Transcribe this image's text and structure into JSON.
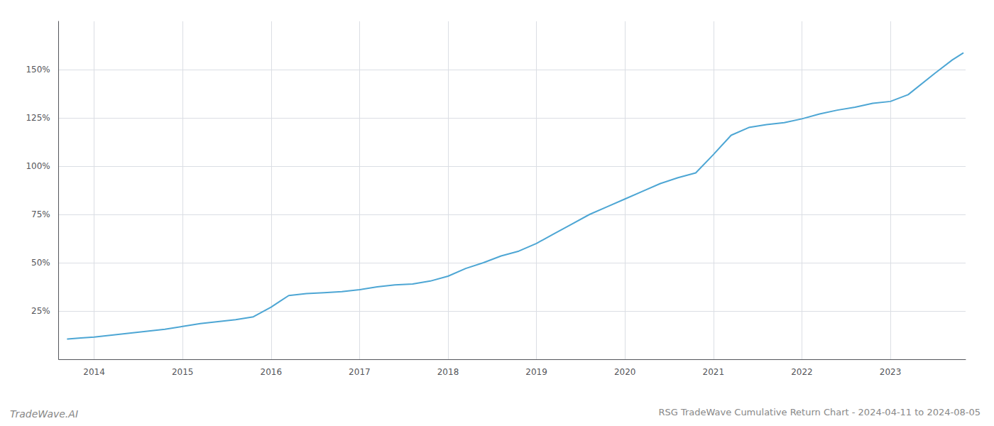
{
  "chart_data": {
    "type": "line",
    "title": "RSG TradeWave Cumulative Return Chart - 2024-04-11 to 2024-08-05",
    "annotations": [
      "TradeWave.AI"
    ],
    "color": "#4da6d4",
    "x": [
      2013.7,
      2013.85,
      2014.0,
      2014.2,
      2014.4,
      2014.6,
      2014.8,
      2015.0,
      2015.2,
      2015.4,
      2015.6,
      2015.8,
      2016.0,
      2016.1,
      2016.2,
      2016.4,
      2016.6,
      2016.8,
      2017.0,
      2017.2,
      2017.4,
      2017.6,
      2017.8,
      2018.0,
      2018.2,
      2018.4,
      2018.6,
      2018.8,
      2019.0,
      2019.2,
      2019.4,
      2019.6,
      2019.8,
      2020.0,
      2020.2,
      2020.4,
      2020.6,
      2020.8,
      2021.0,
      2021.2,
      2021.4,
      2021.6,
      2021.8,
      2022.0,
      2022.2,
      2022.4,
      2022.6,
      2022.8,
      2023.0,
      2023.2,
      2023.5,
      2023.7,
      2023.82
    ],
    "values": [
      10.5,
      11.0,
      11.5,
      12.5,
      13.5,
      14.5,
      15.5,
      17.0,
      18.5,
      19.5,
      20.5,
      22.0,
      27.0,
      30.0,
      33.0,
      34.0,
      34.5,
      35.0,
      36.0,
      37.5,
      38.5,
      39.0,
      40.5,
      43.0,
      47.0,
      50.0,
      53.5,
      56.0,
      60.0,
      65.0,
      70.0,
      75.0,
      79.0,
      83.0,
      87.0,
      91.0,
      94.0,
      96.5,
      106.0,
      116.0,
      120.0,
      121.5,
      122.5,
      124.5,
      127.0,
      129.0,
      130.5,
      132.5,
      133.5,
      137.0,
      148.0,
      155.0,
      158.5
    ],
    "xlim": [
      2013.6,
      2023.85
    ],
    "xticks": [
      2014,
      2015,
      2016,
      2017,
      2018,
      2019,
      2020,
      2021,
      2022,
      2023
    ],
    "ylim": [
      0,
      175
    ],
    "yticks": [
      {
        "value": 25,
        "label": "25%"
      },
      {
        "value": 50,
        "label": "50%"
      },
      {
        "value": 75,
        "label": "75%"
      },
      {
        "value": 100,
        "label": "100%"
      },
      {
        "value": 125,
        "label": "125%"
      },
      {
        "value": 150,
        "label": "150%"
      }
    ],
    "grid": true
  }
}
